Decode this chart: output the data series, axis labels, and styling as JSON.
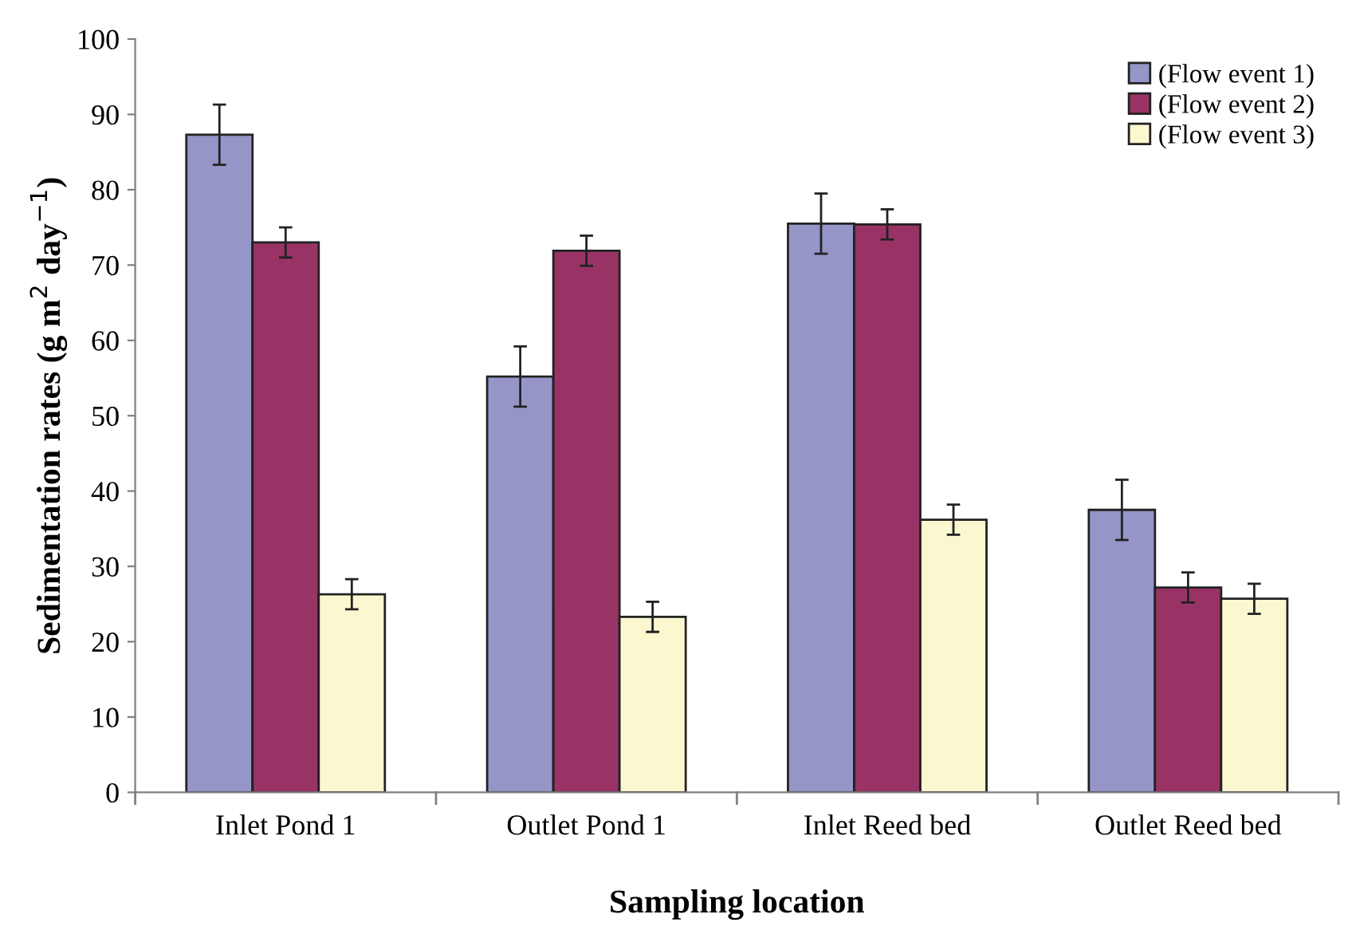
{
  "chart_data": {
    "type": "bar",
    "xlabel": "Sampling location",
    "ylabel": "Sedimentation rates (g m$^{2}$ day$^{−1}$)",
    "categories": [
      "Inlet Pond 1",
      "Outlet Pond 1",
      "Inlet Reed bed",
      "Outlet Reed bed"
    ],
    "series": [
      {
        "name": "(Flow event 1)",
        "color": "#9595c8",
        "values": [
          87.3,
          55.2,
          75.5,
          37.5
        ],
        "errors": [
          4,
          4,
          4,
          4
        ]
      },
      {
        "name": "(Flow event 2)",
        "color": "#993366",
        "values": [
          73,
          71.9,
          75.4,
          27.2
        ],
        "errors": [
          2,
          2,
          2,
          2
        ]
      },
      {
        "name": "(Flow event 3)",
        "color": "#fbf8cf",
        "values": [
          26.3,
          23.3,
          36.2,
          25.7
        ],
        "errors": [
          2,
          2,
          2,
          2
        ]
      }
    ],
    "ylim": [
      0,
      100
    ],
    "yticks": [
      0,
      10,
      20,
      30,
      40,
      50,
      60,
      70,
      80,
      90,
      100
    ],
    "grid": false,
    "legend": "top right"
  }
}
